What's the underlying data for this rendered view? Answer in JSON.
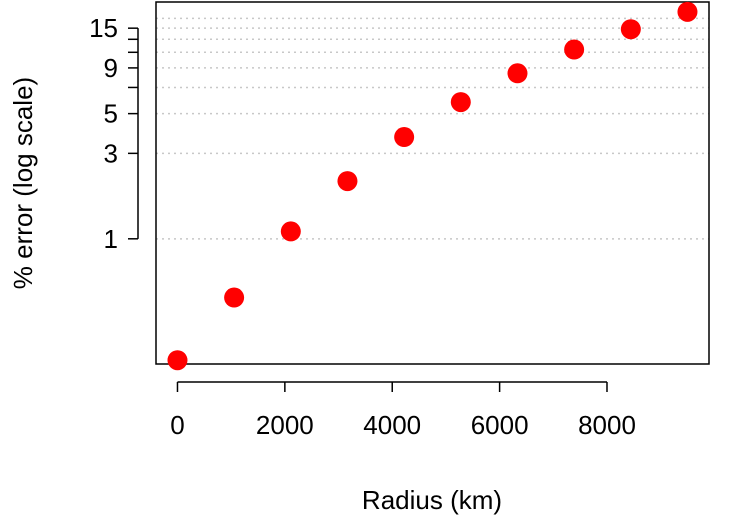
{
  "chart_data": {
    "type": "scatter",
    "title": "",
    "xlabel": "Radius (km)",
    "ylabel": "% error (log scale)",
    "x_ticks": [
      0,
      2000,
      4000,
      6000,
      8000
    ],
    "x_tick_labels": [
      "0",
      "2000",
      "4000",
      "6000",
      "8000"
    ],
    "xlim": [
      -400,
      9900
    ],
    "y_scale": "log",
    "ylim": [
      0.2,
      21
    ],
    "y_ticks": [
      1,
      3,
      5,
      7,
      9,
      11,
      13,
      15
    ],
    "y_tick_labels": [
      "1",
      "3",
      "5",
      "",
      "9",
      "",
      "",
      "15"
    ],
    "y_gridlines": [
      1,
      3,
      5,
      7,
      9,
      11,
      13,
      15,
      17
    ],
    "grid": "horizontal dotted",
    "marker_color": "#ff0000",
    "series": [
      {
        "x": [
          0,
          1055,
          2111,
          3166,
          4222,
          5277,
          6333,
          7388,
          8444,
          9499
        ],
        "y": [
          0.21,
          0.47,
          1.1,
          2.1,
          3.7,
          5.8,
          8.4,
          11.4,
          14.8,
          18.5
        ]
      }
    ]
  }
}
